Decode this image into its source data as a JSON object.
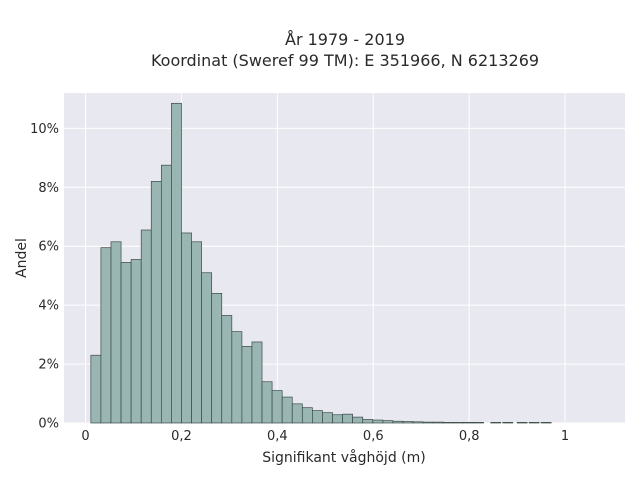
{
  "chart_data": {
    "type": "bar",
    "title_line1": "År 1979 - 2019",
    "title_line2": "Koordinat (Sweref 99 TM): E 351966, N 6213269",
    "xlabel": "Signifikant våghöjd (m)",
    "ylabel": "Andel",
    "x_tick_values": [
      0,
      0.2,
      0.4,
      0.6,
      0.8,
      1
    ],
    "x_tick_labels": [
      "0",
      "0,2",
      "0,4",
      "0,6",
      "0,8",
      "1"
    ],
    "y_tick_values": [
      0,
      2,
      4,
      6,
      8,
      10
    ],
    "y_tick_labels": [
      "0%",
      "2%",
      "4%",
      "6%",
      "8%",
      "10%"
    ],
    "xlim": [
      -0.045,
      1.125
    ],
    "ylim": [
      0,
      11.2
    ],
    "grid": true,
    "bin_width": 0.021,
    "bar_color": "#9ab6b3",
    "bar_edge": "#3a4a48",
    "bins_start": [
      0.011,
      0.032,
      0.053,
      0.074,
      0.095,
      0.116,
      0.137,
      0.158,
      0.179,
      0.2,
      0.221,
      0.242,
      0.263,
      0.284,
      0.305,
      0.326,
      0.347,
      0.368,
      0.389,
      0.41,
      0.431,
      0.452,
      0.473,
      0.494,
      0.515,
      0.536,
      0.557,
      0.578,
      0.599,
      0.62,
      0.641,
      0.662,
      0.683,
      0.704,
      0.725,
      0.746,
      0.767,
      0.788,
      0.809,
      0.845,
      0.87,
      0.9,
      0.925,
      0.95
    ],
    "values": [
      2.3,
      5.95,
      6.15,
      5.45,
      5.55,
      6.55,
      8.2,
      8.75,
      10.85,
      6.45,
      6.15,
      5.1,
      4.4,
      3.65,
      3.1,
      2.6,
      2.75,
      1.4,
      1.1,
      0.88,
      0.65,
      0.52,
      0.42,
      0.35,
      0.28,
      0.3,
      0.2,
      0.12,
      0.1,
      0.08,
      0.06,
      0.05,
      0.04,
      0.03,
      0.03,
      0.02,
      0.02,
      0.02,
      0.02,
      0.02,
      0.02,
      0.02,
      0.02,
      0.02
    ]
  }
}
